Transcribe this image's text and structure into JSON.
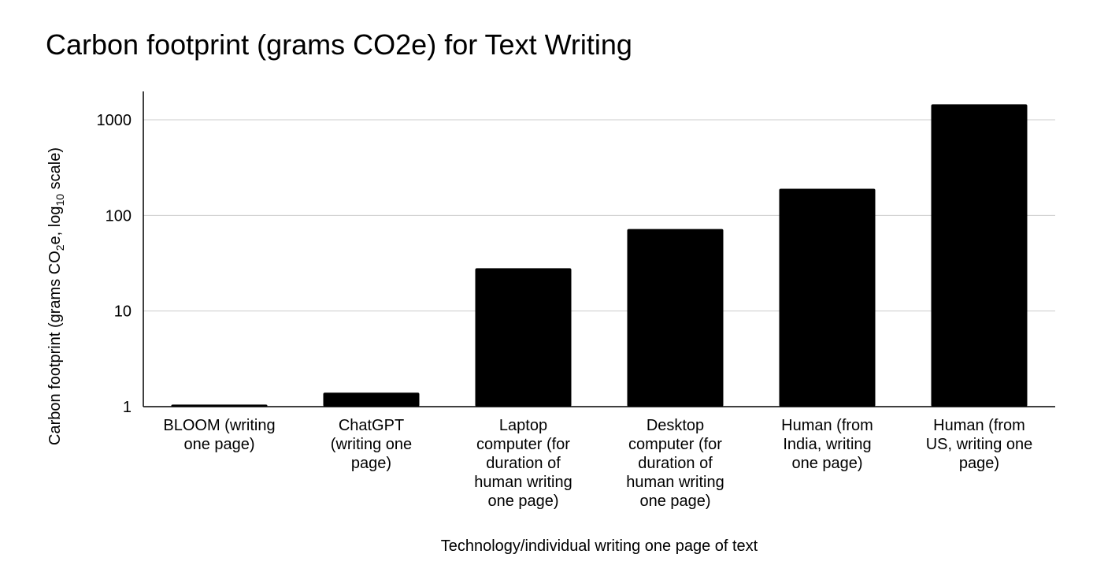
{
  "chart_data": {
    "type": "bar",
    "title": "Carbon footprint (grams CO2e) for Text Writing",
    "xlabel": "Technology/individual writing one page of text",
    "ylabel": {
      "prefix": "Carbon footprint (grams CO",
      "sub1": "2",
      "middle": "e, log",
      "sub2": "10",
      "suffix": " scale)"
    },
    "yscale": "log10",
    "ylim": [
      1,
      2000
    ],
    "yticks": [
      1,
      10,
      100,
      1000
    ],
    "ytick_labels": [
      "1",
      "10",
      "100",
      "1000"
    ],
    "grid": true,
    "legend": "none",
    "bar_color": "#000000",
    "grid_color": "#cccccc",
    "categories": [
      [
        "BLOOM (writing",
        "one page)"
      ],
      [
        "ChatGPT",
        "(writing one",
        "page)"
      ],
      [
        "Laptop",
        "computer (for",
        "duration of",
        "human writing",
        "one page)"
      ],
      [
        "Desktop",
        "computer (for",
        "duration of",
        "human writing",
        "one page)"
      ],
      [
        "Human (from",
        "India, writing",
        "one page)"
      ],
      [
        "Human (from",
        "US, writing one",
        "page)"
      ]
    ],
    "values": [
      1.05,
      1.4,
      28,
      72,
      190,
      1450
    ]
  }
}
